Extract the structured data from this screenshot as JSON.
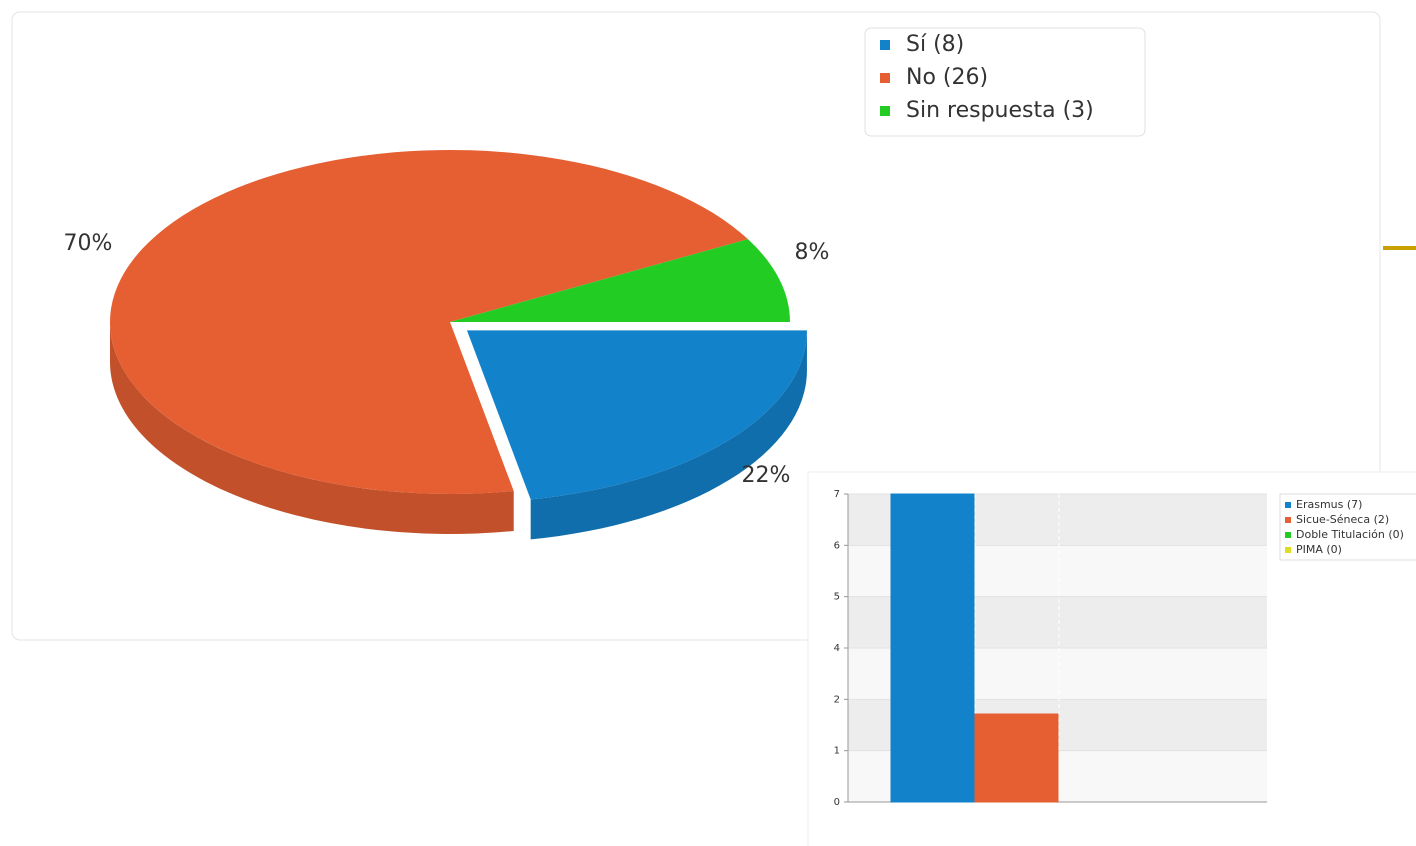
{
  "chart_data": [
    {
      "type": "pie",
      "categories": [
        "Sí (8)",
        "No (26)",
        "Sin respuesta (3)"
      ],
      "values": [
        22,
        70,
        8
      ],
      "value_labels": [
        "22%",
        "70%",
        "8%"
      ],
      "colors": [
        "#1282ca",
        "#e55f32",
        "#22cc22"
      ],
      "legend": "top-right"
    },
    {
      "type": "bar",
      "categories": [
        "Erasmus (7)",
        "Sicue-Séneca (2)",
        "Doble Titulación (0)",
        "PIMA (0)"
      ],
      "values": [
        7,
        2,
        0,
        0
      ],
      "colors": [
        "#1282ca",
        "#e55f32",
        "#22cc22",
        "#dddd22"
      ],
      "ylim": [
        0,
        7
      ],
      "yticks": [
        0,
        {
          "value": 1.1667,
          "label": "1"
        },
        {
          "value": 2.3333,
          "label": "2"
        },
        {
          "value": 3.5,
          "label": "4"
        },
        {
          "value": 4.6667,
          "label": "5"
        },
        {
          "value": 5.8333,
          "label": "6"
        },
        7
      ],
      "grid": true,
      "legend": "top-right"
    }
  ]
}
